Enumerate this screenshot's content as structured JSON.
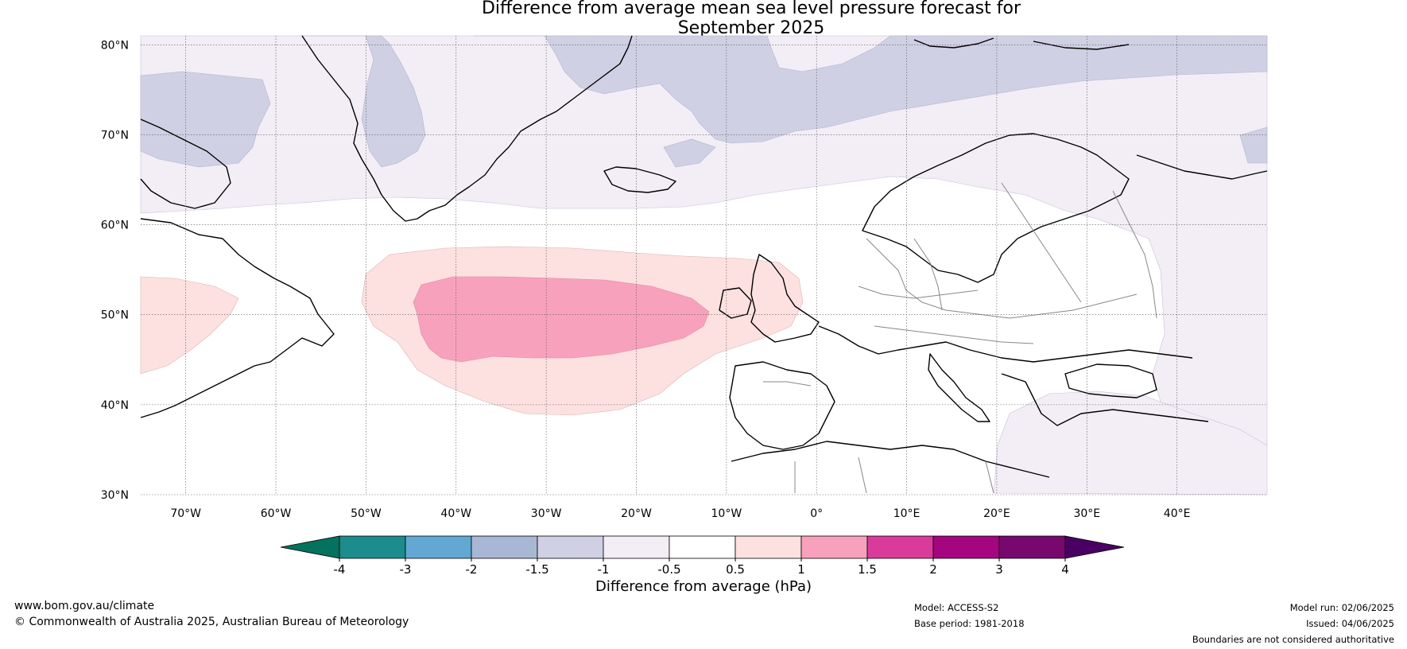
{
  "title_line1": "Difference from average mean sea level pressure forecast for",
  "title_line2": "September 2025",
  "map": {
    "lat_labels": [
      "80°N",
      "70°N",
      "60°N",
      "50°N",
      "40°N",
      "30°N"
    ],
    "lon_labels": [
      "70°W",
      "60°W",
      "50°W",
      "40°W",
      "30°W",
      "20°W",
      "10°W",
      "0°",
      "10°E",
      "20°E",
      "30°E",
      "40°E"
    ],
    "lon_range": [
      -75,
      50
    ],
    "lat_range": [
      30,
      81
    ]
  },
  "colorbar": {
    "label": "Difference from average (hPa)",
    "ticks": [
      "-4",
      "-3",
      "-2",
      "-1.5",
      "-1",
      "-0.5",
      "0.5",
      "1",
      "1.5",
      "2",
      "3",
      "4"
    ],
    "colors": [
      "#1c8c8c",
      "#62a8d2",
      "#a8b7d4",
      "#d0d0e4",
      "#f3edf6",
      "#ffffff",
      "#fde0e0",
      "#f8a1bd",
      "#da3b9a",
      "#a60580",
      "#78086e"
    ],
    "extend_low_color": "#03725e",
    "extend_high_color": "#4a0063"
  },
  "footer": {
    "url": "www.bom.gov.au/climate",
    "copyright": "© Commonwealth of Australia 2025, Australian Bureau of Meteorology",
    "model": "Model: ACCESS-S2",
    "base_period": "Base period: 1981-2018",
    "model_run": "Model run: 02/06/2025",
    "issued": "Issued: 04/06/2025",
    "disclaimer": "Boundaries are not considered authoritative"
  }
}
